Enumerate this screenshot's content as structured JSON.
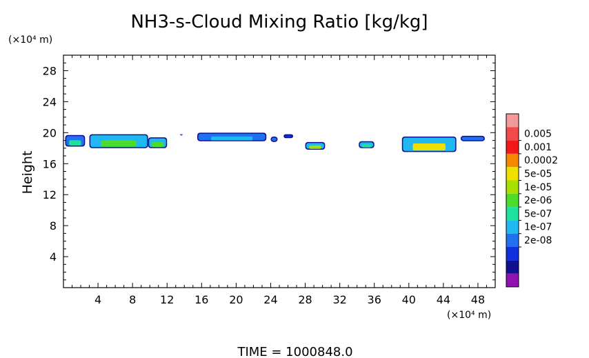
{
  "chart_data": {
    "type": "heatmap",
    "title": "NH3-s-Cloud Mixing Ratio [kg/kg]",
    "ylabel": "Height",
    "xunit": "(×10⁴ m)",
    "yunit": "(×10⁴ m)",
    "footer": "TIME =  1000848.0",
    "xlim": [
      0,
      50
    ],
    "ylim": [
      0,
      30
    ],
    "x_ticks": [
      4,
      8,
      12,
      16,
      20,
      24,
      28,
      32,
      36,
      40,
      44,
      48
    ],
    "y_ticks": [
      4,
      8,
      12,
      16,
      20,
      24,
      28
    ],
    "grid": false,
    "legend": "right",
    "colorbar": {
      "labels": [
        "0.005",
        "0.001",
        "0.0002",
        "5e-05",
        "1e-05",
        "2e-06",
        "5e-07",
        "1e-07",
        "2e-08"
      ],
      "colors": [
        "#f29a9a",
        "#f04a4a",
        "#f01818",
        "#f58a00",
        "#f0e000",
        "#a8e000",
        "#4cdc2a",
        "#20e0a0",
        "#20b8f0",
        "#2070f0",
        "#1030e0",
        "#101090",
        "#9010b0"
      ]
    },
    "regions": [
      {
        "x": [
          0.2,
          2.5
        ],
        "y": [
          18.2,
          19.7
        ],
        "level": "1e-07",
        "core": "2e-06"
      },
      {
        "x": [
          3.0,
          9.8
        ],
        "y": [
          18.0,
          19.8
        ],
        "level": "5e-07",
        "core": "1e-05"
      },
      {
        "x": [
          9.8,
          12.0
        ],
        "y": [
          18.0,
          19.4
        ],
        "level": "5e-07",
        "core": "1e-05"
      },
      {
        "x": [
          13.5,
          13.8
        ],
        "y": [
          19.7,
          19.8
        ],
        "level": "2e-08"
      },
      {
        "x": [
          15.5,
          23.5
        ],
        "y": [
          18.9,
          20.0
        ],
        "level": "1e-07",
        "core": "5e-07"
      },
      {
        "x": [
          24.0,
          24.8
        ],
        "y": [
          18.8,
          19.5
        ],
        "level": "1e-07"
      },
      {
        "x": [
          25.5,
          26.6
        ],
        "y": [
          19.3,
          19.8
        ],
        "level": "2e-08"
      },
      {
        "x": [
          28.0,
          30.3
        ],
        "y": [
          17.8,
          18.8
        ],
        "level": "5e-07",
        "core": "5e-05"
      },
      {
        "x": [
          34.2,
          36.0
        ],
        "y": [
          18.0,
          18.9
        ],
        "level": "5e-07",
        "core": "2e-06"
      },
      {
        "x": [
          39.2,
          45.5
        ],
        "y": [
          17.5,
          19.5
        ],
        "level": "5e-07",
        "core": "0.0002"
      },
      {
        "x": [
          46.0,
          48.8
        ],
        "y": [
          18.9,
          19.6
        ],
        "level": "1e-07"
      }
    ]
  }
}
